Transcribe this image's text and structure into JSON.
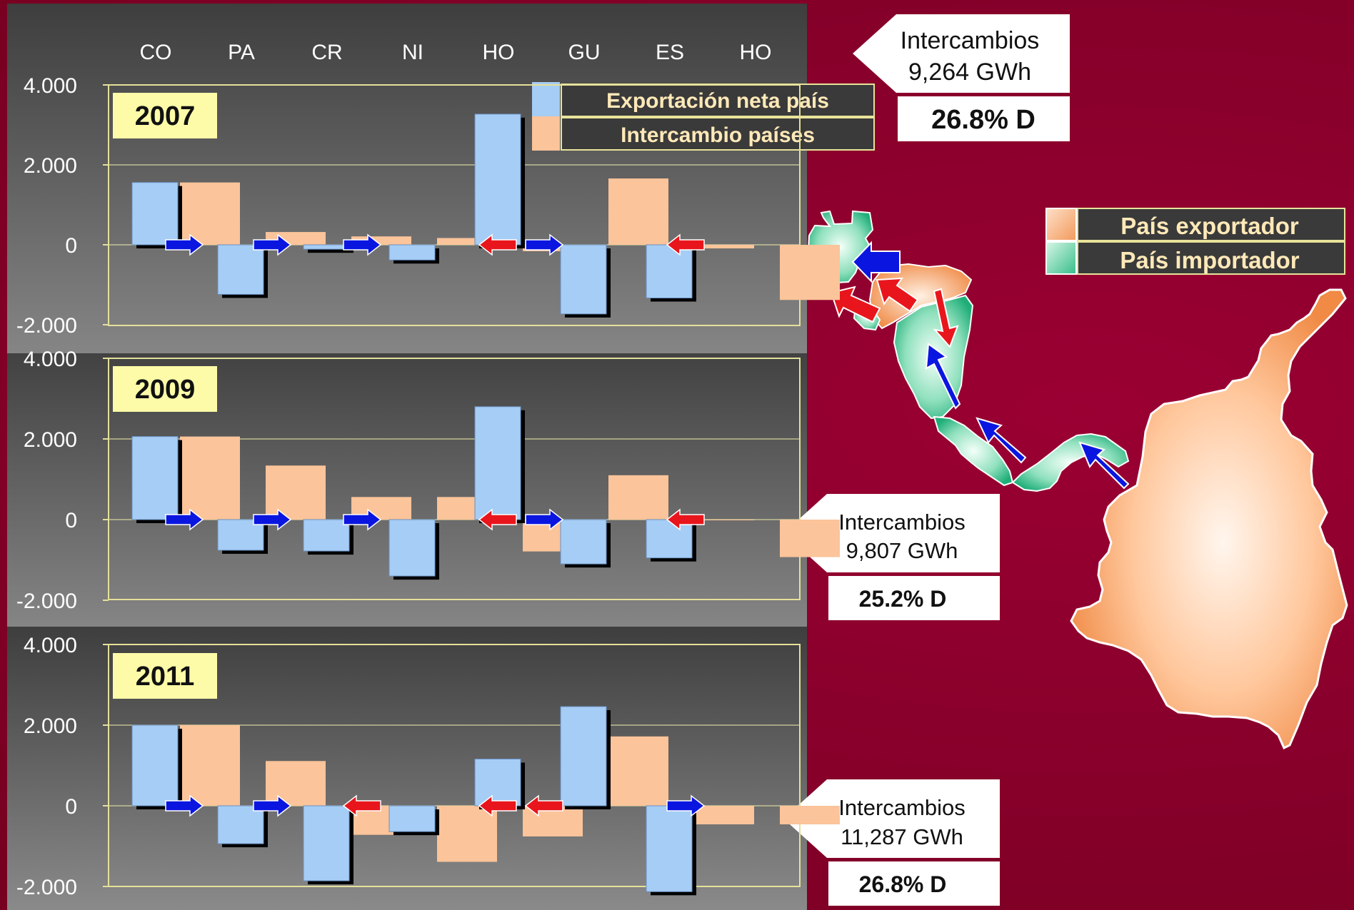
{
  "chart_data": [
    {
      "type": "bar",
      "year_label": "2007",
      "categories": [
        "CO",
        "PA",
        "CR",
        "NI",
        "HO",
        "GU",
        "ES",
        "HO"
      ],
      "ylim": [
        -2000,
        4000
      ],
      "yticks": [
        "4.000",
        "2.000",
        "0",
        "-2.000"
      ],
      "series": [
        {
          "name": "Exportación neta país",
          "values": [
            1560,
            -1240,
            -110,
            -380,
            3270,
            -1730,
            -1330,
            null
          ]
        },
        {
          "name": "Intercambio países",
          "values": [
            1560,
            320,
            210,
            170,
            -160,
            1660,
            -90,
            -1380
          ]
        }
      ],
      "flow_arrows": [
        "right",
        "right",
        "right",
        "left",
        "right",
        "left"
      ]
    },
    {
      "type": "bar",
      "year_label": "2009",
      "categories": [
        "CO",
        "PA",
        "CR",
        "NI",
        "HO",
        "GU",
        "ES",
        "HO"
      ],
      "ylim": [
        -2000,
        4000
      ],
      "yticks": [
        "4.000",
        "2.000",
        "0",
        "-2.000"
      ],
      "series": [
        {
          "name": "Exportación neta país",
          "values": [
            2060,
            -760,
            -780,
            -1400,
            2800,
            -1100,
            -950,
            null
          ]
        },
        {
          "name": "Intercambio países",
          "values": [
            2060,
            1340,
            560,
            560,
            -790,
            1100,
            0,
            -930
          ]
        }
      ],
      "flow_arrows": [
        "right",
        "right",
        "right",
        "left",
        "right",
        "left"
      ]
    },
    {
      "type": "bar",
      "year_label": "2011",
      "categories": [
        "CO",
        "PA",
        "CR",
        "NI",
        "HO",
        "GU",
        "ES",
        "HO"
      ],
      "ylim": [
        -2000,
        4000
      ],
      "yticks": [
        "4.000",
        "2.000",
        "0",
        "-2.000"
      ],
      "series": [
        {
          "name": "Exportación neta país",
          "values": [
            2000,
            -940,
            -1860,
            -640,
            1160,
            2460,
            -2130,
            null
          ]
        },
        {
          "name": "Intercambio países",
          "values": [
            2000,
            1110,
            -720,
            -1390,
            -760,
            1720,
            -460,
            -460
          ]
        }
      ],
      "flow_arrows": [
        "right",
        "right",
        "left",
        "left",
        "left",
        "right"
      ]
    }
  ],
  "legend": {
    "net_export": "Exportación neta país",
    "exchange": "Intercambio países",
    "exporter": "País exportador",
    "importer": "País importador"
  },
  "callouts": [
    {
      "title": "Intercambios",
      "value": "9,264 GWh",
      "pct": "26.8% D"
    },
    {
      "title": "Intercambios",
      "value": "9,807 GWh",
      "pct": "25.2% D"
    },
    {
      "title": "Intercambios",
      "value": "11,287 GWh",
      "pct": "26.8% D"
    }
  ],
  "colors": {
    "net_export": "#a6cdf5",
    "exchange": "#fbc49a",
    "arrow_export": "#0a16e0",
    "arrow_import": "#e8161c",
    "year_box": "#fdfba8",
    "exporter": "#f59a5a",
    "importer": "#3cc08f"
  },
  "map_arrows": [
    "blue",
    "red",
    "red",
    "red",
    "blue",
    "blue",
    "blue"
  ]
}
